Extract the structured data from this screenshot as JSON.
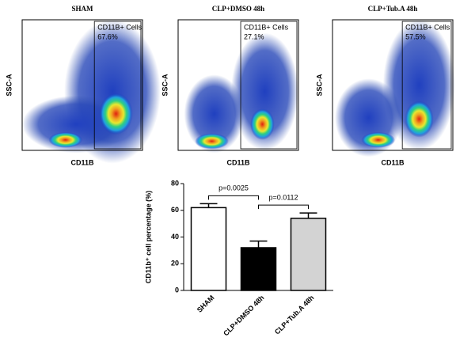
{
  "chart_data": [
    {
      "type": "flow",
      "title": "SHAM",
      "xlabel": "CD11B",
      "ylabel": "SSC-A",
      "gate_name": "CD11B+ Cells",
      "gate_percent": "67.6%"
    },
    {
      "type": "flow",
      "title": "CLP+DMSO 48h",
      "xlabel": "CD11B",
      "ylabel": "SSC-A",
      "gate_name": "CD11B+ Cells",
      "gate_percent": "27.1%"
    },
    {
      "type": "flow",
      "title": "CLP+Tub.A 48h",
      "xlabel": "CD11B",
      "ylabel": "SSC-A",
      "gate_name": "CD11B+ Cells",
      "gate_percent": "57.5%"
    },
    {
      "type": "bar",
      "ylabel": "CD11b⁺ cell percentage (%)",
      "categories": [
        "SHAM",
        "CLP+DMSO 48h",
        "CLP+Tub.A 48h"
      ],
      "values": [
        62,
        32,
        54
      ],
      "errors": [
        3,
        5,
        4
      ],
      "colors": [
        "#ffffff",
        "#000000",
        "#d3d3d3"
      ],
      "ylim": [
        0,
        80
      ],
      "yticks": [
        0,
        20,
        40,
        60,
        80
      ],
      "annotations": [
        {
          "text": "p=0.0025",
          "from": "SHAM",
          "to": "CLP+DMSO 48h"
        },
        {
          "text": "p=0.0112",
          "from": "CLP+DMSO 48h",
          "to": "CLP+Tub.A 48h"
        }
      ]
    }
  ]
}
